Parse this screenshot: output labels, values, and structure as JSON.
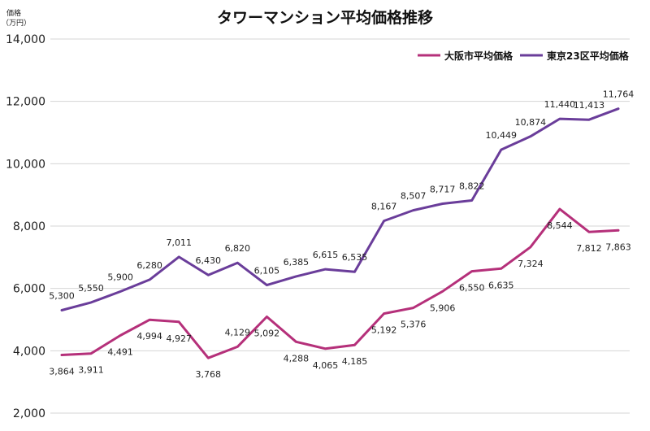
{
  "chart_data": {
    "type": "line",
    "title": "タワーマンション平均価格推移",
    "ylabel_line1": "価格",
    "ylabel_line2": "（万円）",
    "xlabel": "",
    "ylim": [
      2000,
      14000
    ],
    "yticks": [
      2000,
      4000,
      6000,
      8000,
      10000,
      12000,
      14000
    ],
    "ytick_labels": [
      "2,000",
      "4,000",
      "6,000",
      "8,000",
      "10,000",
      "12,000",
      "14,000"
    ],
    "grid": true,
    "legend_position": "top-right",
    "series": [
      {
        "name": "大阪市平均価格",
        "color": "#b5307a",
        "values": [
          3864,
          3911,
          4491,
          4994,
          4927,
          3768,
          4129,
          5092,
          4288,
          4065,
          4185,
          5192,
          5376,
          5906,
          6550,
          6635,
          7324,
          8544,
          7812,
          7863
        ],
        "labels": [
          "3,864",
          "3,911",
          "4,491",
          "4,994",
          "4,927",
          "3,768",
          "4,129",
          "5,092",
          "4,288",
          "4,065",
          "4,185",
          "5,192",
          "5,376",
          "5,906",
          "6,550",
          "6,635",
          "7,324",
          "8,544",
          "7,812",
          "7,863"
        ],
        "label_positions": [
          "below",
          "below",
          "below",
          "below",
          "below",
          "below",
          "above",
          "below",
          "below",
          "below",
          "below",
          "below",
          "below",
          "below",
          "below",
          "below",
          "below",
          "below",
          "below",
          "below"
        ]
      },
      {
        "name": "東京23区平均価格",
        "color": "#6a3d9a",
        "values": [
          5300,
          5550,
          5900,
          6280,
          7011,
          6430,
          6820,
          6105,
          6385,
          6615,
          6535,
          8167,
          8507,
          8717,
          8822,
          10449,
          10874,
          11440,
          11413,
          11764
        ],
        "labels": [
          "5,300",
          "5,550",
          "5,900",
          "6,280",
          "7,011",
          "6,430",
          "6,820",
          "6,105",
          "6,385",
          "6,615",
          "6,535",
          "8,167",
          "8,507",
          "8,717",
          "8,822",
          "10,449",
          "10,874",
          "11,440",
          "11,413",
          "11,764"
        ],
        "label_positions": [
          "above",
          "above",
          "above",
          "above",
          "above",
          "above",
          "above",
          "above",
          "above",
          "above",
          "above",
          "above",
          "above",
          "above",
          "above",
          "above",
          "above",
          "above",
          "above",
          "above"
        ]
      }
    ]
  }
}
